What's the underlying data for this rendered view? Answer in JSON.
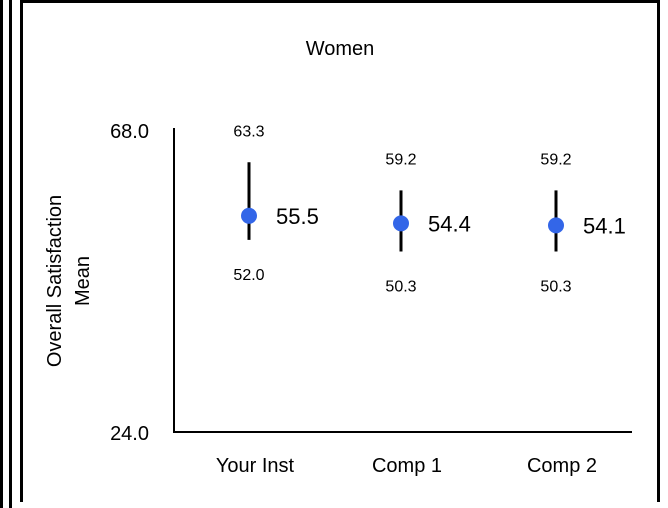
{
  "chart_data": {
    "type": "scatter",
    "title": "Women",
    "ylabel": "Overall Satisfaction Mean",
    "ylabel_lines": [
      "Overall Satisfaction",
      "Mean"
    ],
    "xlabel": "",
    "ylim": [
      24.0,
      68.0
    ],
    "yticks": [
      "68.0",
      "24.0"
    ],
    "categories": [
      "Your Inst",
      "Comp 1",
      "Comp 2"
    ],
    "series": [
      {
        "values": [
          55.5,
          54.4,
          54.1
        ],
        "upper": [
          63.3,
          59.2,
          59.2
        ],
        "lower": [
          52.0,
          50.3,
          50.3
        ],
        "mean_labels": [
          "55.5",
          "54.4",
          "54.1"
        ],
        "upper_labels": [
          "63.3",
          "59.2",
          "59.2"
        ],
        "lower_labels": [
          "52.0",
          "50.3",
          "50.3"
        ]
      }
    ],
    "marker_color": "#3366e8",
    "errorbar_color": "#000000",
    "grid": false,
    "legend": "none"
  }
}
